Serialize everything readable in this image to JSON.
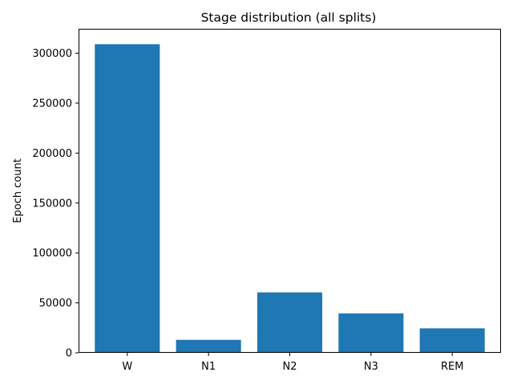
{
  "chart_data": {
    "type": "bar",
    "title": "Stage distribution (all splits)",
    "xlabel": "",
    "ylabel": "Epoch count",
    "categories": [
      "W",
      "N1",
      "N2",
      "N3",
      "REM"
    ],
    "values": [
      309000,
      13000,
      60500,
      39500,
      24500
    ],
    "ylim": [
      0,
      324450
    ],
    "yticks": [
      0,
      50000,
      100000,
      150000,
      200000,
      250000,
      300000
    ],
    "ytick_labels": [
      "0",
      "50000",
      "100000",
      "150000",
      "200000",
      "250000",
      "300000"
    ],
    "bar_color": "#1f77b4",
    "grid": false,
    "legend": "none"
  }
}
